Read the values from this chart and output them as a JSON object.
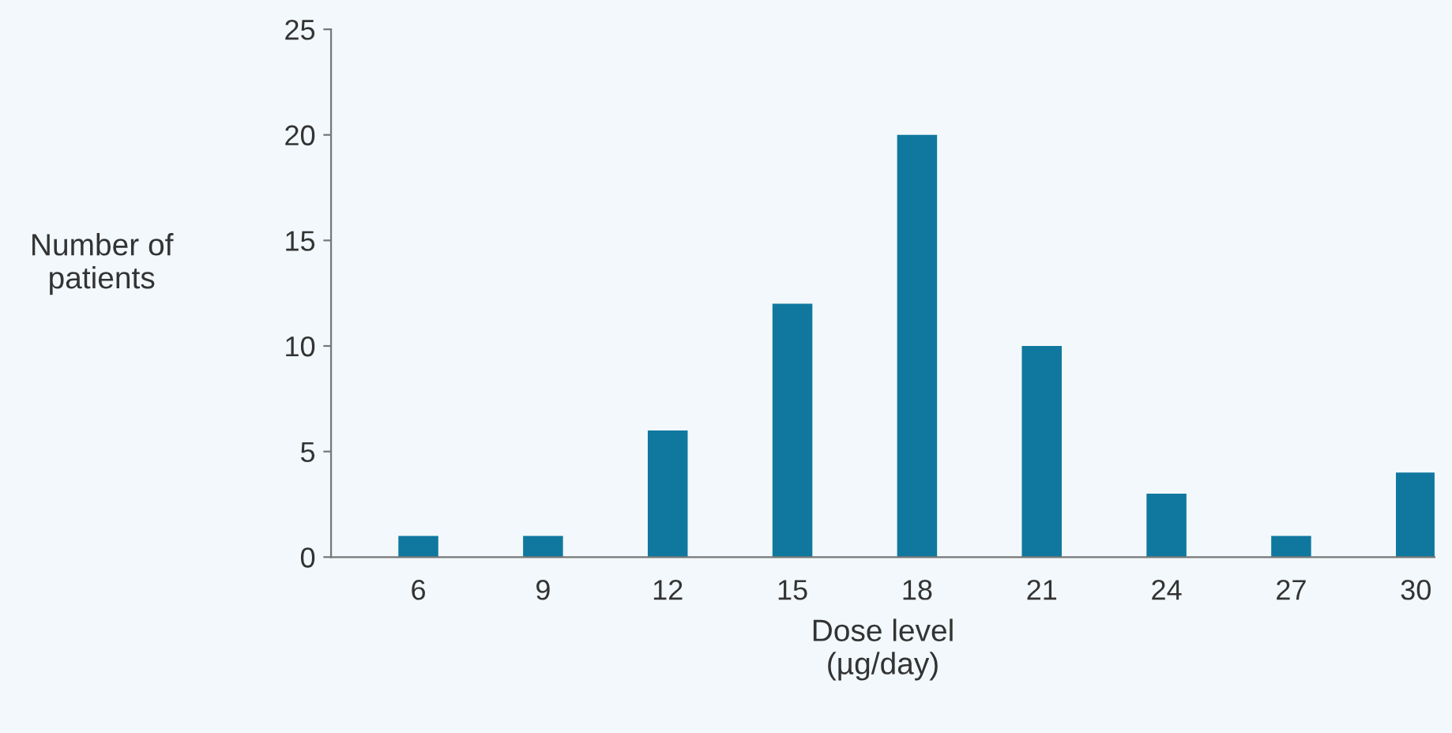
{
  "chart_data": {
    "type": "bar",
    "xlabel": "Dose level\n(µg/day)",
    "ylabel": "Number of\npatients",
    "categories": [
      "6",
      "9",
      "12",
      "15",
      "18",
      "21",
      "24",
      "27",
      "30"
    ],
    "values": [
      1,
      1,
      6,
      12,
      20,
      10,
      3,
      1,
      4
    ],
    "color": "#10789f",
    "ylim": [
      0,
      25
    ],
    "yticks": [
      0,
      5,
      10,
      15,
      20,
      25
    ],
    "grid": false
  }
}
